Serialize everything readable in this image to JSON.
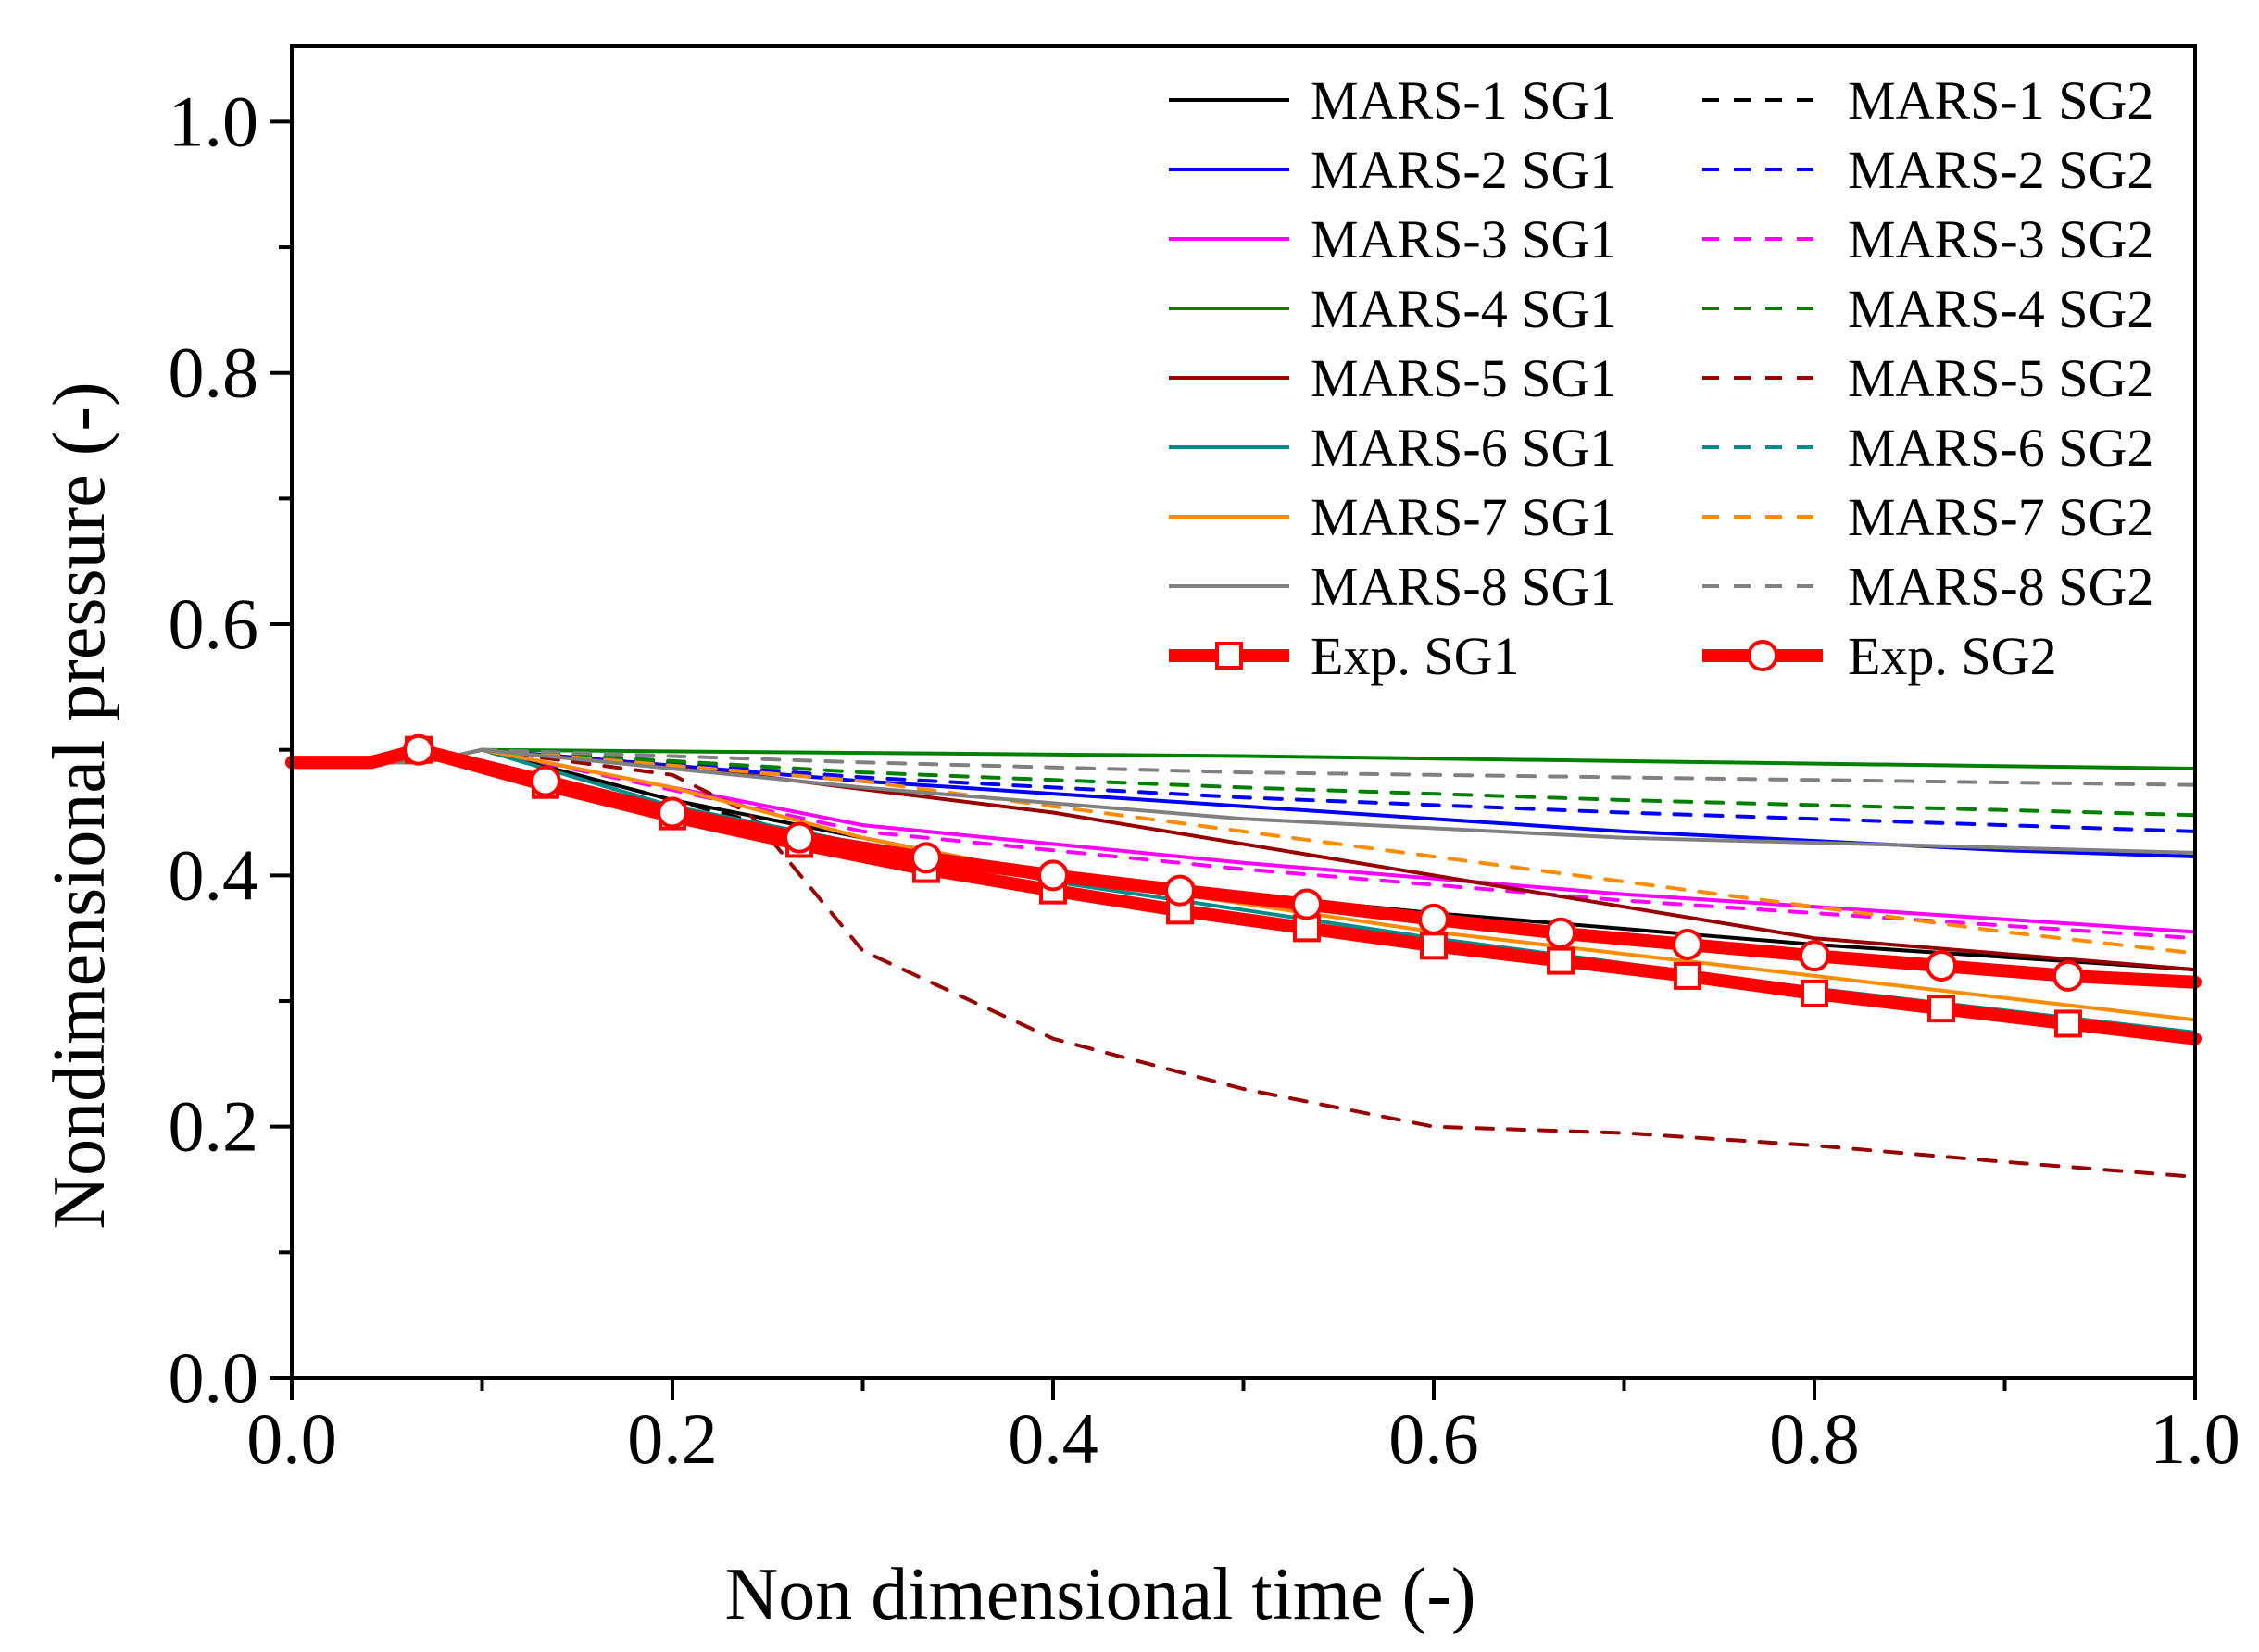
{
  "chart_data": {
    "type": "line",
    "title": "",
    "xlabel": "Non dimensional time (-)",
    "ylabel": "Nondimensional pressure (-)",
    "xlim": [
      0.0,
      1.0
    ],
    "ylim": [
      0.0,
      1.06
    ],
    "xticks": [
      0.0,
      0.2,
      0.4,
      0.6,
      0.8,
      1.0
    ],
    "yticks": [
      0.0,
      0.2,
      0.4,
      0.6,
      0.8,
      1.0
    ],
    "xtick_labels": [
      "0.0",
      "0.2",
      "0.4",
      "0.6",
      "0.8",
      "1.0"
    ],
    "ytick_labels": [
      "0.0",
      "0.2",
      "0.4",
      "0.6",
      "0.8",
      "1.0"
    ],
    "grid": false,
    "legend_position": "top-right",
    "series": [
      {
        "name": "MARS-1 SG1",
        "color": "#000000",
        "dash": "solid",
        "x": [
          0,
          0.07,
          0.1,
          0.2,
          0.4,
          0.6,
          0.8,
          1.0
        ],
        "y": [
          0.49,
          0.49,
          0.5,
          0.46,
          0.4,
          0.37,
          0.345,
          0.325
        ]
      },
      {
        "name": "MARS-1 SG2",
        "color": "#000000",
        "dash": "dashed",
        "x": [
          0,
          0.07,
          0.1,
          0.2,
          0.3,
          0.4
        ],
        "y": [
          0.49,
          0.49,
          0.5,
          0.46,
          0.42,
          0.4
        ]
      },
      {
        "name": "MARS-2 SG1",
        "color": "#0000ff",
        "dash": "solid",
        "x": [
          0,
          0.07,
          0.1,
          0.3,
          0.5,
          0.7,
          0.9,
          1.0
        ],
        "y": [
          0.49,
          0.49,
          0.5,
          0.475,
          0.455,
          0.435,
          0.42,
          0.415
        ]
      },
      {
        "name": "MARS-2 SG2",
        "color": "#0000ff",
        "dash": "dashed",
        "x": [
          0,
          0.07,
          0.1,
          0.3,
          0.5,
          0.7,
          0.9,
          1.0
        ],
        "y": [
          0.49,
          0.49,
          0.5,
          0.478,
          0.462,
          0.45,
          0.44,
          0.435
        ]
      },
      {
        "name": "MARS-3 SG1",
        "color": "#ff00ff",
        "dash": "solid",
        "x": [
          0,
          0.07,
          0.1,
          0.2,
          0.3,
          0.5,
          0.7,
          0.9,
          1.0
        ],
        "y": [
          0.49,
          0.49,
          0.5,
          0.47,
          0.44,
          0.41,
          0.385,
          0.365,
          0.355
        ]
      },
      {
        "name": "MARS-3 SG2",
        "color": "#ff00ff",
        "dash": "dashed",
        "x": [
          0,
          0.07,
          0.1,
          0.2,
          0.3,
          0.5,
          0.7,
          0.9,
          1.0
        ],
        "y": [
          0.49,
          0.49,
          0.5,
          0.468,
          0.435,
          0.405,
          0.38,
          0.36,
          0.35
        ]
      },
      {
        "name": "MARS-4 SG1",
        "color": "#008000",
        "dash": "solid",
        "x": [
          0,
          0.07,
          0.1,
          0.5,
          1.0
        ],
        "y": [
          0.49,
          0.49,
          0.5,
          0.495,
          0.485
        ]
      },
      {
        "name": "MARS-4 SG2",
        "color": "#008000",
        "dash": "dashed",
        "x": [
          0,
          0.07,
          0.1,
          0.3,
          0.5,
          0.7,
          1.0
        ],
        "y": [
          0.49,
          0.49,
          0.5,
          0.482,
          0.47,
          0.46,
          0.448
        ]
      },
      {
        "name": "MARS-5 SG1",
        "color": "#990000",
        "dash": "solid",
        "x": [
          0,
          0.07,
          0.1,
          0.25,
          0.4,
          0.6,
          0.8,
          1.0
        ],
        "y": [
          0.49,
          0.49,
          0.5,
          0.478,
          0.45,
          0.4,
          0.35,
          0.325
        ]
      },
      {
        "name": "MARS-5 SG2",
        "color": "#990000",
        "dash": "dashed",
        "x": [
          0,
          0.07,
          0.1,
          0.2,
          0.24,
          0.3,
          0.4,
          0.5,
          0.6,
          0.7,
          0.8,
          0.9,
          1.0
        ],
        "y": [
          0.49,
          0.49,
          0.5,
          0.48,
          0.45,
          0.34,
          0.27,
          0.23,
          0.2,
          0.195,
          0.185,
          0.172,
          0.16
        ]
      },
      {
        "name": "MARS-6 SG1",
        "color": "#008b8b",
        "dash": "solid",
        "x": [
          0,
          0.07,
          0.1,
          0.2,
          0.4,
          0.6,
          0.8,
          1.0
        ],
        "y": [
          0.49,
          0.49,
          0.5,
          0.455,
          0.395,
          0.35,
          0.31,
          0.275
        ]
      },
      {
        "name": "MARS-6 SG2",
        "color": "#008b8b",
        "dash": "dashed",
        "x": [
          0,
          0.07,
          0.1,
          0.2,
          0.4
        ],
        "y": [
          0.49,
          0.49,
          0.5,
          0.455,
          0.395
        ]
      },
      {
        "name": "MARS-7 SG1",
        "color": "#ff8c00",
        "dash": "solid",
        "x": [
          0,
          0.07,
          0.1,
          0.2,
          0.3,
          0.4,
          0.6,
          0.8,
          1.0
        ],
        "y": [
          0.49,
          0.49,
          0.5,
          0.47,
          0.43,
          0.4,
          0.355,
          0.32,
          0.285
        ]
      },
      {
        "name": "MARS-7 SG2",
        "color": "#ff8c00",
        "dash": "dashed",
        "x": [
          0,
          0.07,
          0.1,
          0.3,
          0.5,
          0.7,
          0.9,
          1.0
        ],
        "y": [
          0.49,
          0.49,
          0.5,
          0.475,
          0.435,
          0.395,
          0.355,
          0.338
        ]
      },
      {
        "name": "MARS-8 SG1",
        "color": "#808080",
        "dash": "solid",
        "x": [
          0,
          0.07,
          0.1,
          0.3,
          0.5,
          0.7,
          0.9,
          1.0
        ],
        "y": [
          0.49,
          0.49,
          0.5,
          0.47,
          0.445,
          0.43,
          0.422,
          0.418
        ]
      },
      {
        "name": "MARS-8 SG2",
        "color": "#808080",
        "dash": "dashed",
        "x": [
          0,
          0.07,
          0.1,
          0.3,
          0.5,
          0.7,
          0.9,
          1.0
        ],
        "y": [
          0.49,
          0.49,
          0.5,
          0.49,
          0.482,
          0.478,
          0.474,
          0.472
        ]
      },
      {
        "name": "Exp. SG1",
        "color": "#ff0000",
        "dash": "solid",
        "marker": "square",
        "thick": true,
        "x": [
          0,
          0.0417,
          0.0667,
          0.1333,
          0.2,
          0.2667,
          0.3333,
          0.4,
          0.4667,
          0.5333,
          0.6,
          0.6667,
          0.7333,
          0.8,
          0.8667,
          0.9333,
          1.0
        ],
        "y": [
          0.49,
          0.49,
          0.5,
          0.472,
          0.447,
          0.425,
          0.405,
          0.388,
          0.372,
          0.358,
          0.344,
          0.332,
          0.32,
          0.306,
          0.294,
          0.282,
          0.27
        ]
      },
      {
        "name": "Exp. SG2",
        "color": "#ff0000",
        "dash": "solid",
        "marker": "circle",
        "thick": true,
        "x": [
          0,
          0.0417,
          0.0667,
          0.1333,
          0.2,
          0.2667,
          0.3333,
          0.4,
          0.4667,
          0.5333,
          0.6,
          0.6667,
          0.7333,
          0.8,
          0.8667,
          0.9333,
          1.0
        ],
        "y": [
          0.49,
          0.49,
          0.5,
          0.475,
          0.45,
          0.43,
          0.414,
          0.4,
          0.388,
          0.377,
          0.365,
          0.354,
          0.345,
          0.336,
          0.328,
          0.32,
          0.315
        ]
      }
    ]
  }
}
